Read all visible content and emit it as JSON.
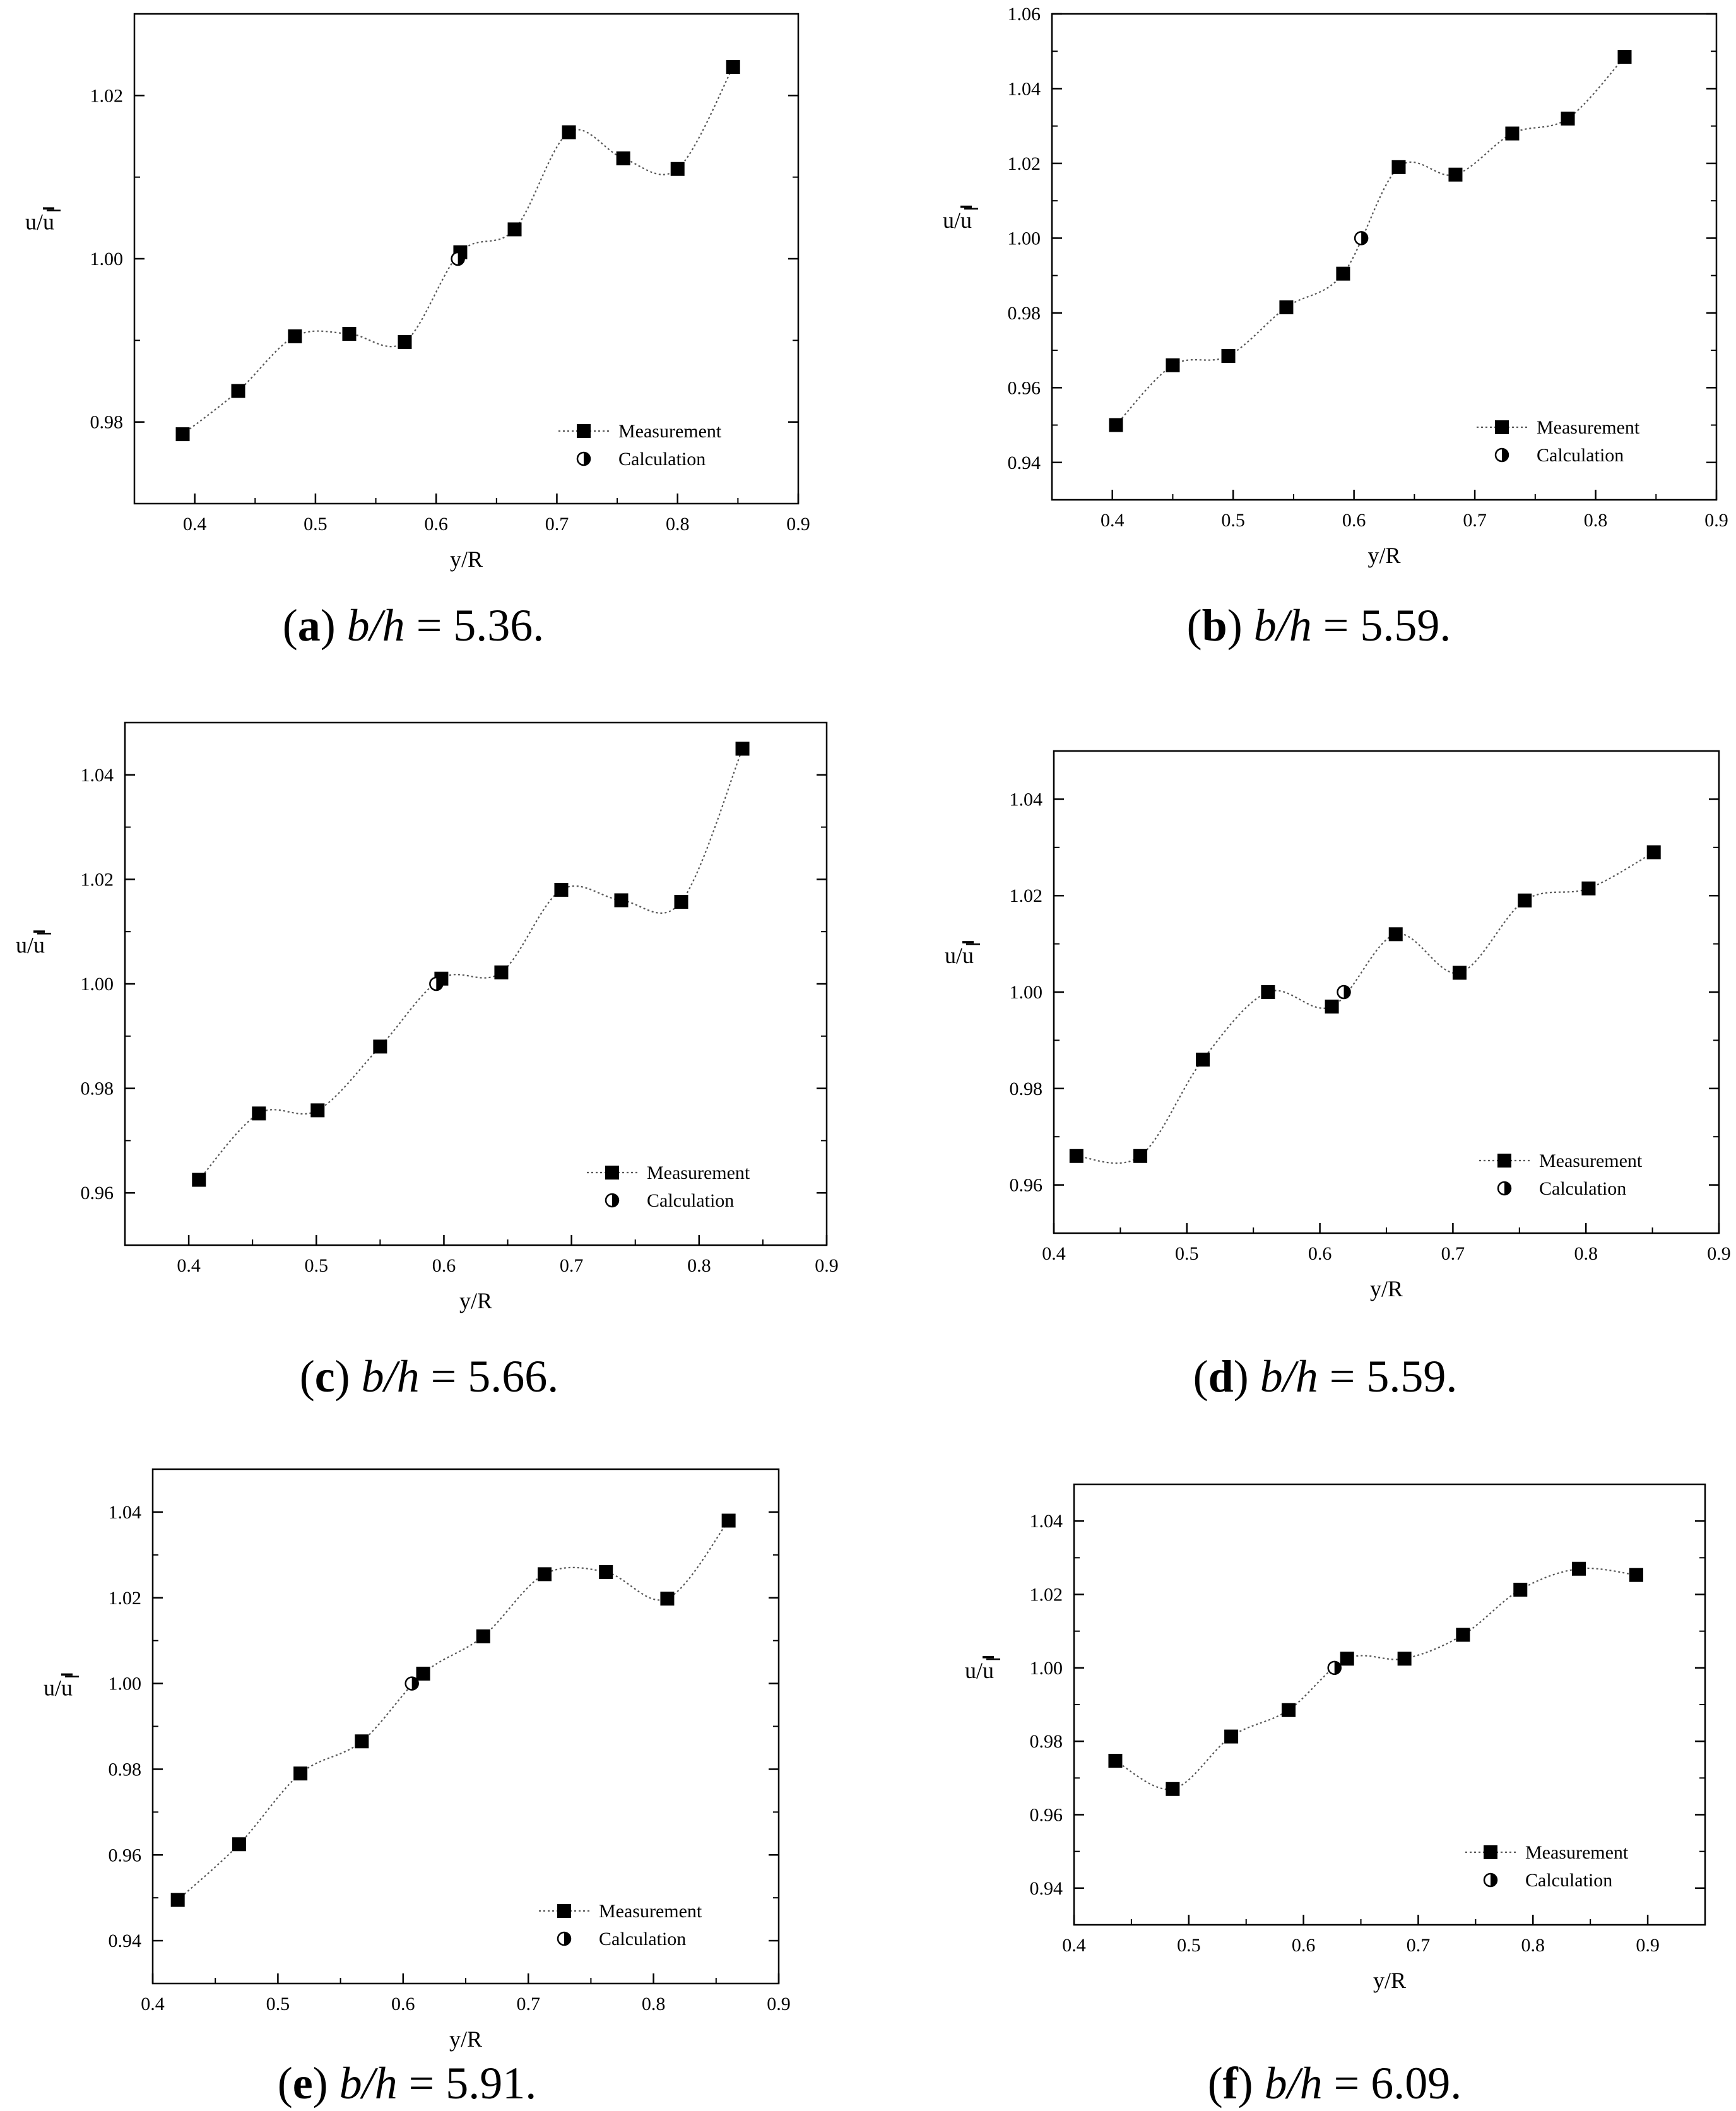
{
  "chart_data": [
    {
      "panel": "a",
      "type": "scatter",
      "ratio_value": "5.36.",
      "xlabel": "y/R",
      "ylabel_parts": [
        "u/",
        "u"
      ],
      "xlim": [
        0.35,
        0.9
      ],
      "ylim": [
        0.97,
        1.03
      ],
      "xticks": [
        "0.4",
        "0.5",
        "0.6",
        "0.7",
        "0.8",
        "0.9"
      ],
      "xtick_values": [
        0.4,
        0.5,
        0.6,
        0.7,
        0.8,
        0.9
      ],
      "yticks": [
        "0.98",
        "1.00",
        "1.02"
      ],
      "ytick_values": [
        0.98,
        1.0,
        1.02
      ],
      "measurement": {
        "x": [
          0.39,
          0.436,
          0.483,
          0.528,
          0.574,
          0.62,
          0.665,
          0.71,
          0.755,
          0.8,
          0.846
        ],
        "y": [
          0.9785,
          0.9838,
          0.9905,
          0.9908,
          0.9898,
          1.0008,
          1.0036,
          1.0155,
          1.0123,
          1.011,
          1.0235
        ]
      },
      "calculation": {
        "x": [
          0.618
        ],
        "y": [
          1.0
        ]
      },
      "legend": [
        "Measurement",
        "Calculation"
      ]
    },
    {
      "panel": "b",
      "type": "scatter",
      "ratio_value": "5.59.",
      "xlabel": "y/R",
      "ylabel_parts": [
        "u/",
        "u"
      ],
      "xlim": [
        0.35,
        0.9
      ],
      "ylim": [
        0.93,
        1.06
      ],
      "xticks": [
        "0.4",
        "0.5",
        "0.6",
        "0.7",
        "0.8",
        "0.9"
      ],
      "xtick_values": [
        0.4,
        0.5,
        0.6,
        0.7,
        0.8,
        0.9
      ],
      "yticks": [
        "0.94",
        "0.96",
        "0.98",
        "1.00",
        "1.02",
        "1.04",
        "1.06"
      ],
      "ytick_values": [
        0.94,
        0.96,
        0.98,
        1.0,
        1.02,
        1.04,
        1.06
      ],
      "measurement": {
        "x": [
          0.403,
          0.45,
          0.496,
          0.544,
          0.591,
          0.637,
          0.684,
          0.731,
          0.777,
          0.824
        ],
        "y": [
          0.95,
          0.966,
          0.9685,
          0.9815,
          0.9905,
          1.019,
          1.017,
          1.028,
          1.032,
          1.0485
        ]
      },
      "calculation": {
        "x": [
          0.606
        ],
        "y": [
          1.0
        ]
      },
      "legend": [
        "Measurement",
        "Calculation"
      ]
    },
    {
      "panel": "c",
      "type": "scatter",
      "ratio_value": "5.66.",
      "xlabel": "y/R",
      "ylabel_parts": [
        "u/",
        "u"
      ],
      "xlim": [
        0.35,
        0.9
      ],
      "ylim": [
        0.95,
        1.05
      ],
      "xticks": [
        "0.4",
        "0.5",
        "0.6",
        "0.7",
        "0.8",
        "0.9"
      ],
      "xtick_values": [
        0.4,
        0.5,
        0.6,
        0.7,
        0.8,
        0.9
      ],
      "yticks": [
        "0.96",
        "0.98",
        "1.00",
        "1.02",
        "1.04"
      ],
      "ytick_values": [
        0.96,
        0.98,
        1.0,
        1.02,
        1.04
      ],
      "measurement": {
        "x": [
          0.408,
          0.455,
          0.501,
          0.55,
          0.598,
          0.645,
          0.692,
          0.739,
          0.786,
          0.834
        ],
        "y": [
          0.9625,
          0.9752,
          0.9758,
          0.988,
          1.001,
          1.0022,
          1.018,
          1.016,
          1.0157,
          1.045
        ]
      },
      "calculation": {
        "x": [
          0.594
        ],
        "y": [
          1.0
        ]
      },
      "legend": [
        "Measurement",
        "Calculation"
      ]
    },
    {
      "panel": "d",
      "type": "scatter",
      "ratio_value": "5.59.",
      "xlabel": "y/R",
      "ylabel_parts": [
        "u/",
        "u"
      ],
      "xlim": [
        0.4,
        0.9
      ],
      "ylim": [
        0.95,
        1.05
      ],
      "xticks": [
        "0.4",
        "0.5",
        "0.6",
        "0.7",
        "0.8",
        "0.9"
      ],
      "xtick_values": [
        0.4,
        0.5,
        0.6,
        0.7,
        0.8,
        0.9
      ],
      "yticks": [
        "0.96",
        "0.98",
        "1.00",
        "1.02",
        "1.04"
      ],
      "ytick_values": [
        0.96,
        0.98,
        1.0,
        1.02,
        1.04
      ],
      "measurement": {
        "x": [
          0.417,
          0.465,
          0.512,
          0.561,
          0.609,
          0.657,
          0.705,
          0.754,
          0.802,
          0.851
        ],
        "y": [
          0.966,
          0.966,
          0.986,
          1.0,
          0.997,
          1.012,
          1.004,
          1.019,
          1.0215,
          1.029
        ]
      },
      "calculation": {
        "x": [
          0.618
        ],
        "y": [
          1.0
        ]
      },
      "legend": [
        "Measurement",
        "Calculation"
      ]
    },
    {
      "panel": "e",
      "type": "scatter",
      "ratio_value": "5.91.",
      "xlabel": "y/R",
      "ylabel_parts": [
        "u/",
        "u"
      ],
      "xlim": [
        0.4,
        0.9
      ],
      "ylim": [
        0.93,
        1.05
      ],
      "xticks": [
        "0.4",
        "0.5",
        "0.6",
        "0.7",
        "0.8",
        "0.9"
      ],
      "xtick_values": [
        0.4,
        0.5,
        0.6,
        0.7,
        0.8,
        0.9
      ],
      "yticks": [
        "0.94",
        "0.96",
        "0.98",
        "1.00",
        "1.02",
        "1.04"
      ],
      "ytick_values": [
        0.94,
        0.96,
        0.98,
        1.0,
        1.02,
        1.04
      ],
      "measurement": {
        "x": [
          0.42,
          0.469,
          0.518,
          0.567,
          0.616,
          0.664,
          0.713,
          0.762,
          0.811,
          0.86
        ],
        "y": [
          0.9495,
          0.9625,
          0.979,
          0.9865,
          1.0023,
          1.011,
          1.0255,
          1.026,
          1.0198,
          1.038
        ]
      },
      "calculation": {
        "x": [
          0.607
        ],
        "y": [
          1.0
        ]
      },
      "legend": [
        "Measurement",
        "Calculation"
      ]
    },
    {
      "panel": "f",
      "type": "scatter",
      "ratio_value": "6.09.",
      "xlabel": "y/R",
      "ylabel_parts": [
        "u/",
        "u"
      ],
      "xlim": [
        0.4,
        0.95
      ],
      "ylim": [
        0.93,
        1.05
      ],
      "xticks": [
        "0.4",
        "0.5",
        "0.6",
        "0.7",
        "0.8",
        "0.9"
      ],
      "xtick_values": [
        0.4,
        0.5,
        0.6,
        0.7,
        0.8,
        0.9
      ],
      "yticks": [
        "0.94",
        "0.96",
        "0.98",
        "1.00",
        "1.02",
        "1.04"
      ],
      "ytick_values": [
        0.94,
        0.96,
        0.98,
        1.0,
        1.02,
        1.04
      ],
      "measurement": {
        "x": [
          0.436,
          0.486,
          0.537,
          0.587,
          0.638,
          0.688,
          0.739,
          0.789,
          0.84,
          0.89
        ],
        "y": [
          0.9747,
          0.967,
          0.9813,
          0.9885,
          1.0025,
          1.0025,
          1.009,
          1.0213,
          1.027,
          1.0253
        ]
      },
      "calculation": {
        "x": [
          0.627
        ],
        "y": [
          1.0
        ]
      },
      "legend": [
        "Measurement",
        "Calculation"
      ]
    }
  ],
  "caption_ratio_label": "b/h",
  "caption_eq": " = "
}
